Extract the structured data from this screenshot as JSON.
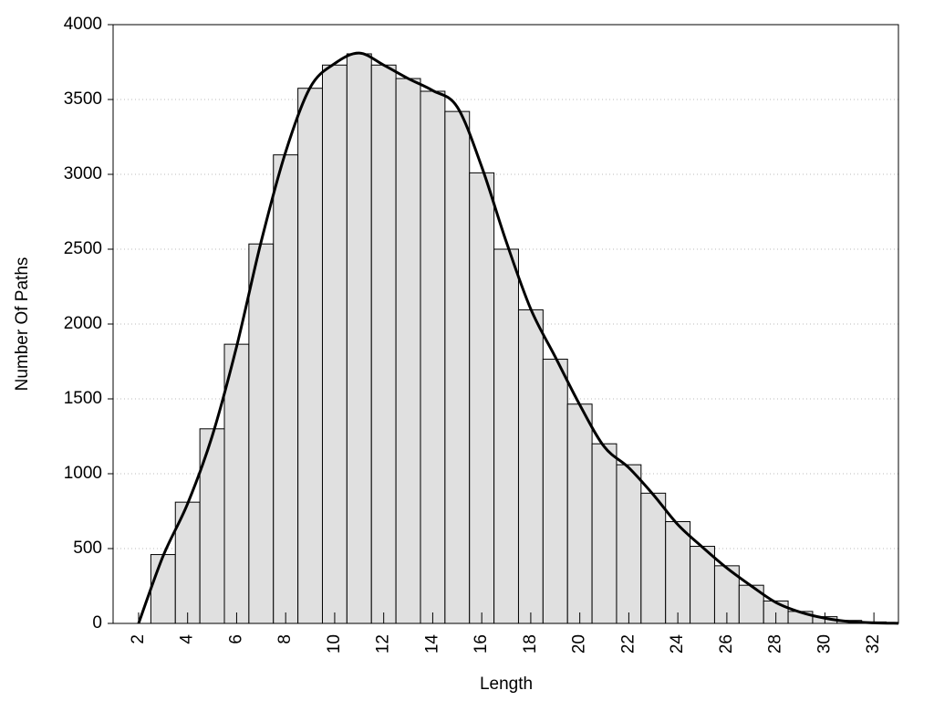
{
  "chart_data": {
    "type": "histogram",
    "x_label": "Length",
    "y_label": "Number Of Paths",
    "bins": [
      2.5,
      3.5,
      4.5,
      5.5,
      6.5,
      7.5,
      8.5,
      9.5,
      10.5,
      11.5,
      12.5,
      13.5,
      14.5,
      15.5,
      16.5,
      17.5,
      18.5,
      19.5,
      20.5,
      21.5,
      22.5,
      23.5,
      24.5,
      25.5,
      26.5,
      27.5,
      28.5,
      29.5,
      30.5,
      31.5,
      32.5
    ],
    "values": [
      460,
      810,
      1300,
      1865,
      2535,
      3130,
      3575,
      3730,
      3805,
      3730,
      3640,
      3555,
      3420,
      3010,
      2500,
      2095,
      1765,
      1465,
      1200,
      1060,
      870,
      680,
      515,
      385,
      255,
      150,
      80,
      45,
      20,
      10
    ],
    "color": "#e0e0e0",
    "line": {
      "color": "#000000",
      "x": [
        2,
        3,
        4,
        5,
        6,
        7,
        8,
        9,
        10,
        11,
        12,
        13,
        14,
        15,
        16,
        17,
        18,
        19,
        20,
        21,
        22,
        23,
        24,
        25,
        26,
        27,
        28,
        29,
        30,
        31,
        32,
        33
      ],
      "values": [
        0,
        450,
        800,
        1250,
        1850,
        2550,
        3150,
        3580,
        3740,
        3810,
        3730,
        3640,
        3560,
        3450,
        3050,
        2550,
        2100,
        1780,
        1460,
        1180,
        1040,
        860,
        660,
        510,
        370,
        250,
        140,
        75,
        35,
        12,
        4,
        1
      ]
    },
    "xlim": [
      0.96,
      33
    ],
    "ylim": [
      0,
      4000
    ],
    "xticks": [
      2,
      4,
      6,
      8,
      10,
      12,
      14,
      16,
      18,
      20,
      22,
      24,
      26,
      28,
      30,
      32
    ],
    "yticks": [
      0,
      500,
      1000,
      1500,
      2000,
      2500,
      3000,
      3500,
      4000
    ],
    "grid": true
  }
}
